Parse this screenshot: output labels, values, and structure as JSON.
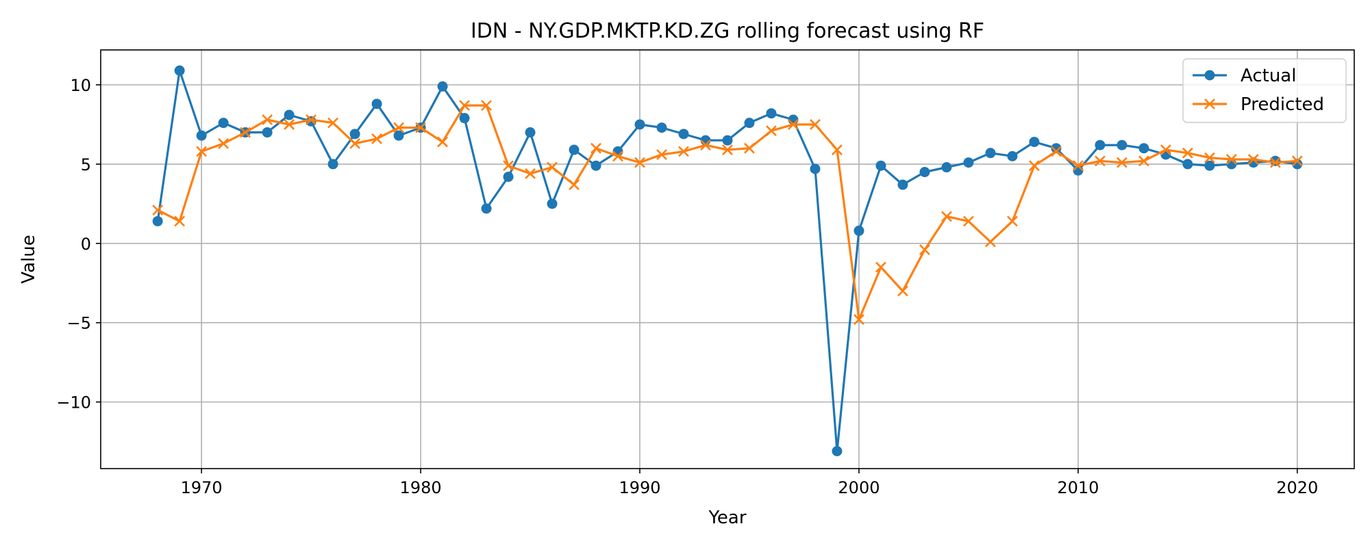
{
  "chart_data": {
    "type": "line",
    "title": "IDN - NY.GDP.MKTP.KD.ZG rolling forecast using RF",
    "xlabel": "Year",
    "ylabel": "Value",
    "xlim": [
      1965.4,
      2022.6
    ],
    "ylim": [
      -14.2,
      12.2
    ],
    "xticks": [
      1970,
      1980,
      1990,
      2000,
      2010,
      2020
    ],
    "yticks": [
      10,
      5,
      0,
      -5,
      -10
    ],
    "ytick_labels": [
      "10",
      "5",
      "0",
      "−5",
      "−10"
    ],
    "grid": true,
    "legend_position": "top-right",
    "x": [
      1968,
      1969,
      1970,
      1971,
      1972,
      1973,
      1974,
      1975,
      1976,
      1977,
      1978,
      1979,
      1980,
      1981,
      1982,
      1983,
      1984,
      1985,
      1986,
      1987,
      1988,
      1989,
      1990,
      1991,
      1992,
      1993,
      1994,
      1995,
      1996,
      1997,
      1998,
      1999,
      2000,
      2001,
      2002,
      2003,
      2004,
      2005,
      2006,
      2007,
      2008,
      2009,
      2010,
      2011,
      2012,
      2013,
      2014,
      2015,
      2016,
      2017,
      2018,
      2019,
      2020
    ],
    "series": [
      {
        "name": "Actual",
        "color": "#1f77b4",
        "marker": "circle",
        "values": [
          1.4,
          10.9,
          6.8,
          7.6,
          7.0,
          7.0,
          8.1,
          7.7,
          5.0,
          6.9,
          8.8,
          6.8,
          7.3,
          9.9,
          7.9,
          2.2,
          4.2,
          7.0,
          2.5,
          5.9,
          4.9,
          5.8,
          7.5,
          7.3,
          6.9,
          6.5,
          6.5,
          7.6,
          8.2,
          7.8,
          4.7,
          -13.1,
          0.8,
          4.9,
          3.7,
          4.5,
          4.8,
          5.1,
          5.7,
          5.5,
          6.4,
          6.0,
          4.6,
          6.2,
          6.2,
          6.0,
          5.6,
          5.0,
          4.9,
          5.0,
          5.1,
          5.2,
          5.0
        ]
      },
      {
        "name": "Predicted",
        "color": "#ff7f0e",
        "marker": "x",
        "values": [
          2.1,
          1.4,
          5.8,
          6.3,
          7.0,
          7.8,
          7.5,
          7.8,
          7.6,
          6.3,
          6.6,
          7.3,
          7.3,
          6.4,
          8.7,
          8.7,
          4.9,
          4.4,
          4.8,
          3.7,
          6.0,
          5.5,
          5.1,
          5.6,
          5.8,
          6.2,
          5.9,
          6.0,
          7.1,
          7.5,
          7.5,
          5.9,
          -4.8,
          -1.5,
          -3.0,
          -0.4,
          1.7,
          1.4,
          0.1,
          1.4,
          4.9,
          5.8,
          4.9,
          5.2,
          5.1,
          5.2,
          5.9,
          5.7,
          5.4,
          5.3,
          5.3,
          5.1,
          5.2
        ]
      }
    ]
  }
}
